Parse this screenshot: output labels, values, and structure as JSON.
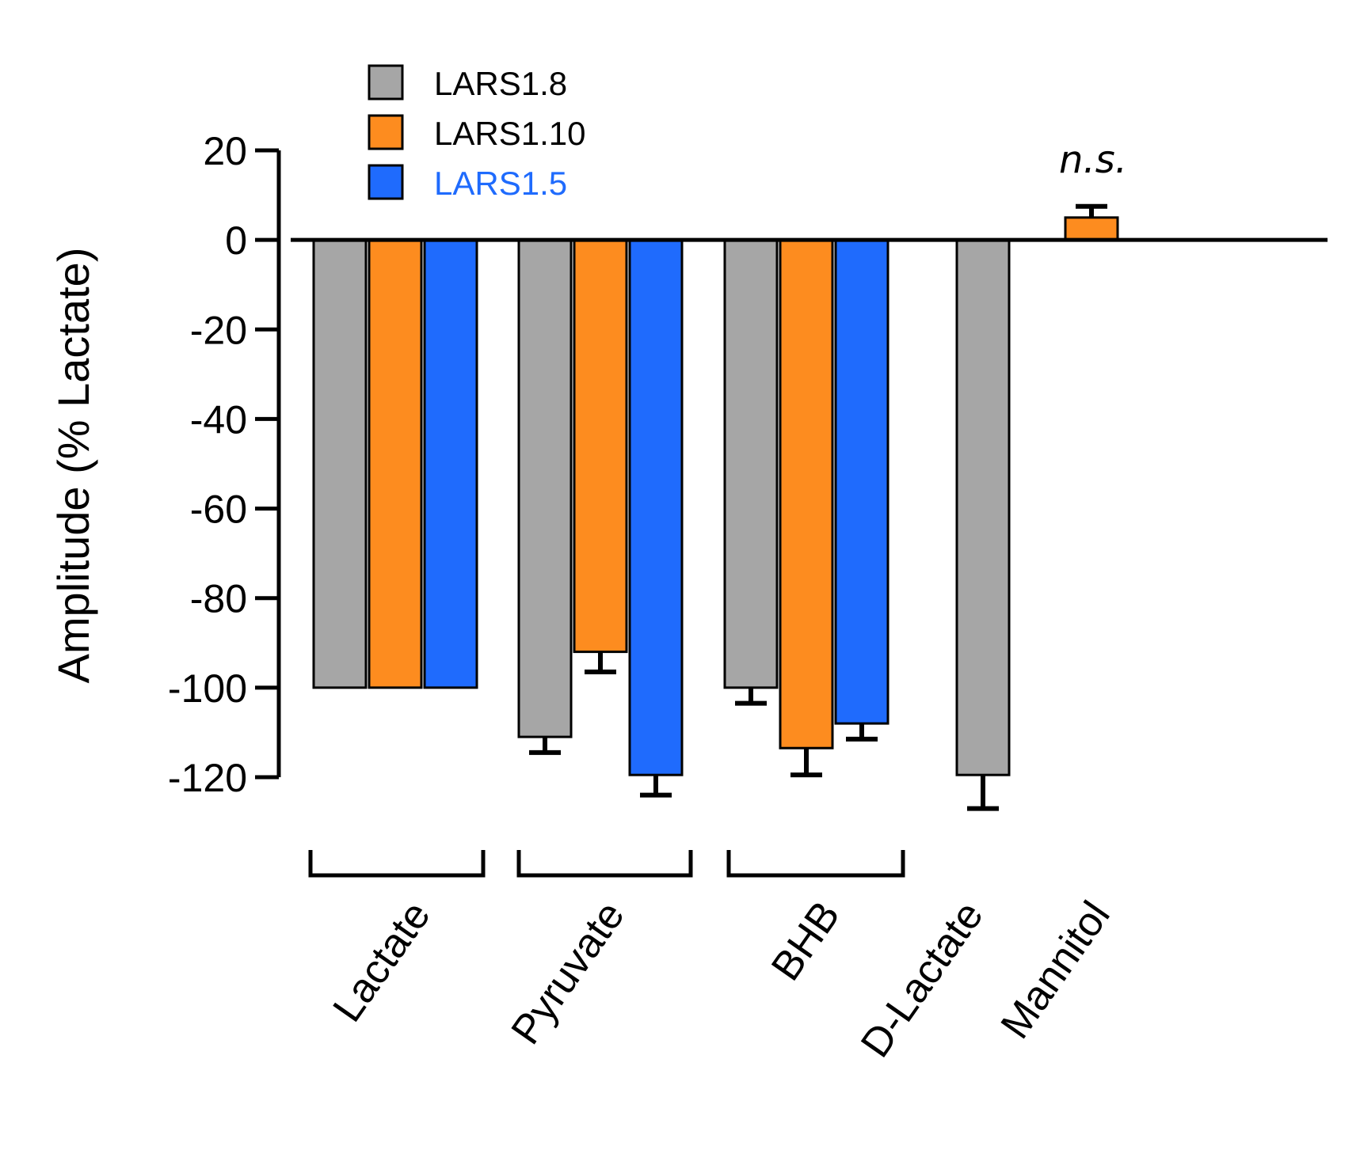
{
  "chart_data": {
    "type": "bar",
    "title": "",
    "xlabel": "",
    "ylabel": "Amplitude (% Lactate)",
    "ylim": [
      -120,
      20
    ],
    "yticks": [
      20,
      0,
      -20,
      -40,
      -60,
      -80,
      -100,
      -120
    ],
    "categories": [
      "Lactate",
      "Pyruvate",
      "BHB",
      "D-Lactate",
      "Mannitol"
    ],
    "series": [
      {
        "name": "LARS1.8",
        "color": "#a6a6a6",
        "legend_text_color": "#000000",
        "values": [
          -100,
          -111,
          -100,
          -119.5,
          null
        ],
        "errors": [
          0,
          3.5,
          3.5,
          7.5,
          null
        ]
      },
      {
        "name": "LARS1.10",
        "color": "#fd8c1f",
        "legend_text_color": "#000000",
        "values": [
          -100,
          -92,
          -113.5,
          null,
          5
        ],
        "errors": [
          0,
          4.5,
          6,
          null,
          2.5
        ]
      },
      {
        "name": "LARS1.5",
        "color": "#1f6bfd",
        "legend_text_color": "#1f6bfd",
        "values": [
          -100,
          -119.5,
          -108,
          null,
          null
        ],
        "errors": [
          0,
          4.5,
          3.5,
          null,
          null
        ]
      }
    ],
    "legend_position": "top-left",
    "annotations": [
      {
        "text": "n.s.",
        "category": "Mannitol"
      }
    ]
  }
}
